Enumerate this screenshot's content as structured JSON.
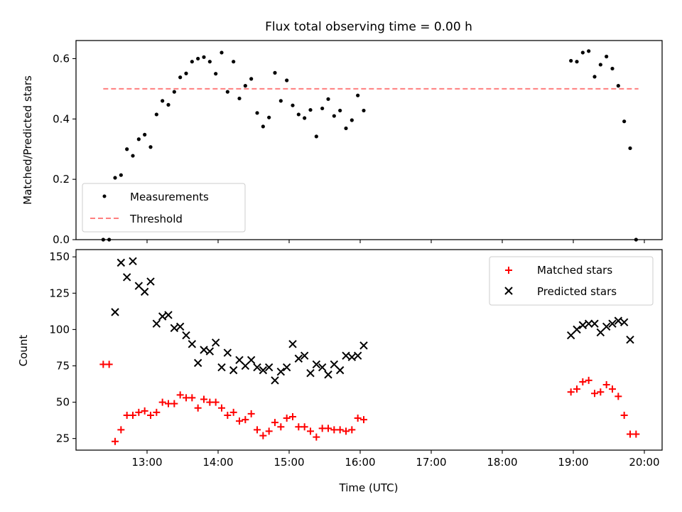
{
  "colors": {
    "measurements": "#000000",
    "threshold": "#ff7f7f",
    "matched": "#ff0000",
    "predicted": "#000000"
  },
  "chart_data": [
    {
      "type": "scatter",
      "title": "Flux total observing time = 0.00 h",
      "xlabel": "",
      "ylabel": "Matched/Predicted stars",
      "xlim": [
        "12:00",
        "20:15"
      ],
      "ylim": [
        0,
        0.66
      ],
      "x_ticks": [
        "13:00",
        "14:00",
        "15:00",
        "16:00",
        "17:00",
        "18:00",
        "19:00",
        "20:00"
      ],
      "y_ticks": [
        "0.0",
        "0.2",
        "0.4",
        "0.6"
      ],
      "grid": false,
      "legend": {
        "location": "lower-left",
        "entries": [
          "Measurements",
          "Threshold"
        ]
      },
      "threshold": {
        "name": "Threshold",
        "y": 0.5,
        "x_start": "12:23",
        "x_end": "19:55"
      },
      "series": [
        {
          "name": "Measurements",
          "marker": "dot",
          "points": [
            [
              "12:23",
              0.0
            ],
            [
              "12:28",
              0.0
            ],
            [
              "12:33",
              0.205
            ],
            [
              "12:38",
              0.214
            ],
            [
              "12:43",
              0.3
            ],
            [
              "12:48",
              0.278
            ],
            [
              "12:53",
              0.333
            ],
            [
              "12:58",
              0.348
            ],
            [
              "13:03",
              0.307
            ],
            [
              "13:08",
              0.415
            ],
            [
              "13:13",
              0.46
            ],
            [
              "13:18",
              0.447
            ],
            [
              "13:23",
              0.49
            ],
            [
              "13:28",
              0.538
            ],
            [
              "13:33",
              0.551
            ],
            [
              "13:38",
              0.59
            ],
            [
              "13:43",
              0.6
            ],
            [
              "13:48",
              0.605
            ],
            [
              "13:53",
              0.59
            ],
            [
              "13:58",
              0.55
            ],
            [
              "14:03",
              0.62
            ],
            [
              "14:08",
              0.49
            ],
            [
              "14:13",
              0.59
            ],
            [
              "14:18",
              0.468
            ],
            [
              "14:23",
              0.51
            ],
            [
              "14:28",
              0.533
            ],
            [
              "14:33",
              0.42
            ],
            [
              "14:38",
              0.375
            ],
            [
              "14:43",
              0.405
            ],
            [
              "14:48",
              0.553
            ],
            [
              "14:53",
              0.46
            ],
            [
              "14:58",
              0.528
            ],
            [
              "15:03",
              0.445
            ],
            [
              "15:08",
              0.415
            ],
            [
              "15:13",
              0.403
            ],
            [
              "15:18",
              0.43
            ],
            [
              "15:23",
              0.342
            ],
            [
              "15:28",
              0.435
            ],
            [
              "15:33",
              0.466
            ],
            [
              "15:38",
              0.41
            ],
            [
              "15:43",
              0.428
            ],
            [
              "15:48",
              0.369
            ],
            [
              "15:53",
              0.396
            ],
            [
              "15:58",
              0.478
            ],
            [
              "16:03",
              0.428
            ],
            [
              "18:58",
              0.593
            ],
            [
              "19:03",
              0.59
            ],
            [
              "19:08",
              0.62
            ],
            [
              "19:13",
              0.625
            ],
            [
              "19:18",
              0.54
            ],
            [
              "19:23",
              0.58
            ],
            [
              "19:28",
              0.607
            ],
            [
              "19:33",
              0.567
            ],
            [
              "19:38",
              0.51
            ],
            [
              "19:43",
              0.392
            ],
            [
              "19:48",
              0.303
            ],
            [
              "19:53",
              0.0
            ]
          ]
        }
      ]
    },
    {
      "type": "scatter",
      "title": "",
      "xlabel": "Time (UTC)",
      "ylabel": "Count",
      "xlim": [
        "12:00",
        "20:15"
      ],
      "ylim": [
        17,
        155
      ],
      "x_ticks": [
        "13:00",
        "14:00",
        "15:00",
        "16:00",
        "17:00",
        "18:00",
        "19:00",
        "20:00"
      ],
      "y_ticks": [
        "25",
        "50",
        "75",
        "100",
        "125",
        "150"
      ],
      "grid": false,
      "legend": {
        "location": "upper-right",
        "entries": [
          "Matched stars",
          "Predicted stars"
        ]
      },
      "series": [
        {
          "name": "Matched stars",
          "marker": "plus",
          "points": [
            [
              "12:23",
              76
            ],
            [
              "12:28",
              76
            ],
            [
              "12:33",
              23
            ],
            [
              "12:38",
              31
            ],
            [
              "12:43",
              41
            ],
            [
              "12:48",
              41
            ],
            [
              "12:53",
              43
            ],
            [
              "12:58",
              44
            ],
            [
              "13:03",
              41
            ],
            [
              "13:08",
              43
            ],
            [
              "13:13",
              50
            ],
            [
              "13:18",
              49
            ],
            [
              "13:23",
              49
            ],
            [
              "13:28",
              55
            ],
            [
              "13:33",
              53
            ],
            [
              "13:38",
              53
            ],
            [
              "13:43",
              46
            ],
            [
              "13:48",
              52
            ],
            [
              "13:53",
              50
            ],
            [
              "13:58",
              50
            ],
            [
              "14:03",
              46
            ],
            [
              "14:08",
              41
            ],
            [
              "14:13",
              43
            ],
            [
              "14:18",
              37
            ],
            [
              "14:23",
              38
            ],
            [
              "14:28",
              42
            ],
            [
              "14:33",
              31
            ],
            [
              "14:38",
              27
            ],
            [
              "14:43",
              30
            ],
            [
              "14:48",
              36
            ],
            [
              "14:53",
              33
            ],
            [
              "14:58",
              39
            ],
            [
              "15:03",
              40
            ],
            [
              "15:08",
              33
            ],
            [
              "15:13",
              33
            ],
            [
              "15:18",
              30
            ],
            [
              "15:23",
              26
            ],
            [
              "15:28",
              32
            ],
            [
              "15:33",
              32
            ],
            [
              "15:38",
              31
            ],
            [
              "15:43",
              31
            ],
            [
              "15:48",
              30
            ],
            [
              "15:53",
              31
            ],
            [
              "15:58",
              39
            ],
            [
              "16:03",
              38
            ],
            [
              "18:58",
              57
            ],
            [
              "19:03",
              59
            ],
            [
              "19:08",
              64
            ],
            [
              "19:13",
              65
            ],
            [
              "19:18",
              56
            ],
            [
              "19:23",
              57
            ],
            [
              "19:28",
              62
            ],
            [
              "19:33",
              59
            ],
            [
              "19:38",
              54
            ],
            [
              "19:43",
              41
            ],
            [
              "19:48",
              28
            ],
            [
              "19:53",
              28
            ]
          ]
        },
        {
          "name": "Predicted stars",
          "marker": "x",
          "points": [
            [
              "12:33",
              112
            ],
            [
              "12:38",
              146
            ],
            [
              "12:43",
              136
            ],
            [
              "12:48",
              147
            ],
            [
              "12:53",
              130
            ],
            [
              "12:58",
              126
            ],
            [
              "13:03",
              133
            ],
            [
              "13:08",
              104
            ],
            [
              "13:13",
              109
            ],
            [
              "13:18",
              110
            ],
            [
              "13:23",
              101
            ],
            [
              "13:28",
              102
            ],
            [
              "13:33",
              96
            ],
            [
              "13:38",
              90
            ],
            [
              "13:43",
              77
            ],
            [
              "13:48",
              86
            ],
            [
              "13:53",
              85
            ],
            [
              "13:58",
              91
            ],
            [
              "14:03",
              74
            ],
            [
              "14:08",
              84
            ],
            [
              "14:13",
              72
            ],
            [
              "14:18",
              79
            ],
            [
              "14:23",
              75
            ],
            [
              "14:28",
              79
            ],
            [
              "14:33",
              74
            ],
            [
              "14:38",
              72
            ],
            [
              "14:43",
              74
            ],
            [
              "14:48",
              65
            ],
            [
              "14:53",
              71
            ],
            [
              "14:58",
              74
            ],
            [
              "15:03",
              90
            ],
            [
              "15:08",
              80
            ],
            [
              "15:13",
              82
            ],
            [
              "15:18",
              70
            ],
            [
              "15:23",
              76
            ],
            [
              "15:28",
              74
            ],
            [
              "15:33",
              69
            ],
            [
              "15:38",
              76
            ],
            [
              "15:43",
              72
            ],
            [
              "15:48",
              82
            ],
            [
              "15:53",
              81
            ],
            [
              "15:58",
              82
            ],
            [
              "16:03",
              89
            ],
            [
              "18:58",
              96
            ],
            [
              "19:03",
              100
            ],
            [
              "19:08",
              103
            ],
            [
              "19:13",
              104
            ],
            [
              "19:18",
              104
            ],
            [
              "19:23",
              98
            ],
            [
              "19:28",
              102
            ],
            [
              "19:33",
              104
            ],
            [
              "19:38",
              106
            ],
            [
              "19:43",
              105
            ],
            [
              "19:48",
              93
            ]
          ]
        }
      ]
    }
  ]
}
